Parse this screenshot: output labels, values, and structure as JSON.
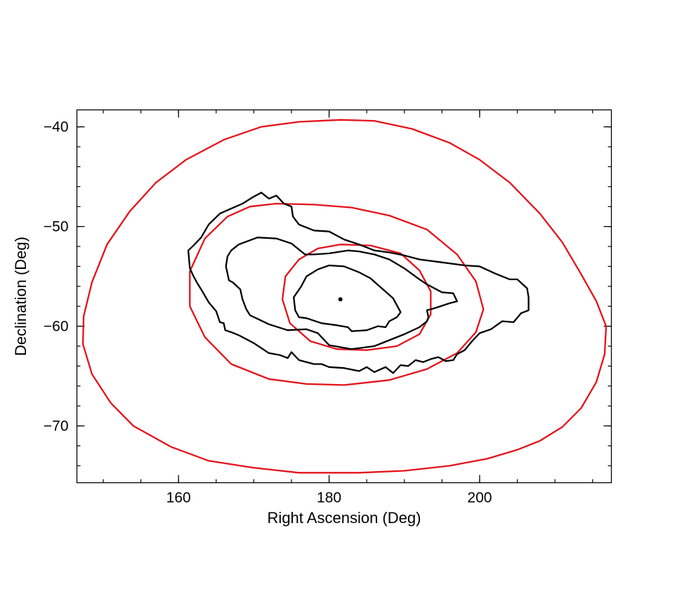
{
  "chart_data": {
    "type": "line",
    "title": "",
    "xlabel": "Right Ascension (Deg)",
    "ylabel": "Declination (Deg)",
    "xlim": [
      146.5,
      217.5
    ],
    "ylim": [
      -75.7,
      -38.3
    ],
    "x_ticks": [
      {
        "value": 160,
        "label": "160"
      },
      {
        "value": 180,
        "label": "180"
      },
      {
        "value": 200,
        "label": "200"
      }
    ],
    "y_ticks": [
      {
        "value": -40,
        "label": "−40"
      },
      {
        "value": -50,
        "label": "−50"
      },
      {
        "value": -60,
        "label": "−60"
      },
      {
        "value": -70,
        "label": "−70"
      }
    ],
    "x_minor_step": 5,
    "y_minor_step": 2,
    "grid": false,
    "colors": {
      "black_contour": "#000000",
      "red_contour": "#e4121b"
    },
    "center_point": {
      "x": 181.5,
      "y": -57.3
    },
    "series": [
      {
        "color": "#e4121b",
        "points": [
          [
            181.5,
            -39.3
          ],
          [
            186,
            -39.4
          ],
          [
            191,
            -40.2
          ],
          [
            196,
            -41.6
          ],
          [
            200,
            -43.3
          ],
          [
            204,
            -45.6
          ],
          [
            208,
            -48.7
          ],
          [
            211,
            -51.6
          ],
          [
            213.5,
            -54.8
          ],
          [
            215.5,
            -57.5
          ],
          [
            216.8,
            -60
          ],
          [
            216.6,
            -62.8
          ],
          [
            215.5,
            -65.6
          ],
          [
            213.5,
            -68.2
          ],
          [
            211,
            -70.1
          ],
          [
            208,
            -71.5
          ],
          [
            205,
            -72.4
          ],
          [
            201,
            -73.3
          ],
          [
            196,
            -74
          ],
          [
            190,
            -74.5
          ],
          [
            184,
            -74.7
          ],
          [
            176,
            -74.7
          ],
          [
            170,
            -74.2
          ],
          [
            164,
            -73.5
          ],
          [
            159,
            -72.1
          ],
          [
            154,
            -70
          ],
          [
            151,
            -67.7
          ],
          [
            148.5,
            -64.8
          ],
          [
            147.3,
            -61.8
          ],
          [
            147.4,
            -59
          ],
          [
            148.5,
            -55.6
          ],
          [
            150.5,
            -51.8
          ],
          [
            153.5,
            -48.5
          ],
          [
            157,
            -45.6
          ],
          [
            161,
            -43.3
          ],
          [
            166,
            -41.3
          ],
          [
            171,
            -40
          ],
          [
            176,
            -39.5
          ],
          [
            181.5,
            -39.3
          ]
        ]
      },
      {
        "color": "#e4121b",
        "points": [
          [
            173,
            -47.7
          ],
          [
            178,
            -47.8
          ],
          [
            183,
            -48.1
          ],
          [
            188,
            -48.9
          ],
          [
            193,
            -50.3
          ],
          [
            197,
            -52.8
          ],
          [
            199.5,
            -55.5
          ],
          [
            200.5,
            -58.3
          ],
          [
            199.5,
            -60.6
          ],
          [
            197,
            -62.7
          ],
          [
            193,
            -64.3
          ],
          [
            188,
            -65.4
          ],
          [
            182,
            -65.9
          ],
          [
            177,
            -65.8
          ],
          [
            172,
            -65.3
          ],
          [
            167,
            -63.8
          ],
          [
            163.5,
            -61.1
          ],
          [
            161.5,
            -58
          ],
          [
            161.5,
            -54.5
          ],
          [
            163.5,
            -51.2
          ],
          [
            166.5,
            -49
          ],
          [
            169.5,
            -48
          ],
          [
            173,
            -47.7
          ]
        ]
      },
      {
        "color": "#e4121b",
        "points": [
          [
            181.5,
            -51.8
          ],
          [
            185.5,
            -51.9
          ],
          [
            189.5,
            -52.7
          ],
          [
            192,
            -54.4
          ],
          [
            193.5,
            -56.5
          ],
          [
            193.5,
            -58.8
          ],
          [
            192,
            -60.8
          ],
          [
            189,
            -62
          ],
          [
            185,
            -62.4
          ],
          [
            181,
            -62.3
          ],
          [
            177.5,
            -61.5
          ],
          [
            174.8,
            -59.7
          ],
          [
            173.8,
            -57.3
          ],
          [
            174.2,
            -55
          ],
          [
            176,
            -53.3
          ],
          [
            178.5,
            -52.2
          ],
          [
            181.5,
            -51.8
          ]
        ]
      },
      {
        "color": "#000000",
        "points": [
          [
            171,
            -46.6
          ],
          [
            172,
            -47.2
          ],
          [
            173,
            -46.9
          ],
          [
            174,
            -47.7
          ],
          [
            175,
            -48
          ],
          [
            175.2,
            -49
          ],
          [
            176,
            -49.8
          ],
          [
            178,
            -50.4
          ],
          [
            180,
            -50.5
          ],
          [
            182,
            -51.3
          ],
          [
            184,
            -51.8
          ],
          [
            186,
            -52.4
          ],
          [
            188,
            -52.6
          ],
          [
            190,
            -52.9
          ],
          [
            192,
            -53.3
          ],
          [
            195,
            -53.6
          ],
          [
            198,
            -53.9
          ],
          [
            200,
            -54
          ],
          [
            202,
            -54.7
          ],
          [
            204,
            -55.3
          ],
          [
            205,
            -55.3
          ],
          [
            206.3,
            -56.2
          ],
          [
            206.5,
            -57.1
          ],
          [
            206.5,
            -58.4
          ],
          [
            205.5,
            -58.7
          ],
          [
            204.5,
            -59.6
          ],
          [
            203,
            -59.5
          ],
          [
            201.5,
            -60.3
          ],
          [
            200,
            -60.7
          ],
          [
            199,
            -61.5
          ],
          [
            198,
            -62.4
          ],
          [
            197,
            -62.8
          ],
          [
            196.5,
            -63.4
          ],
          [
            195.5,
            -63.5
          ],
          [
            194.5,
            -63.1
          ],
          [
            193.5,
            -63.3
          ],
          [
            192.5,
            -63.6
          ],
          [
            191.5,
            -63.4
          ],
          [
            190.5,
            -64
          ],
          [
            189.5,
            -63.9
          ],
          [
            188.5,
            -64.7
          ],
          [
            187.5,
            -64.1
          ],
          [
            186,
            -64.6
          ],
          [
            185,
            -64.1
          ],
          [
            184,
            -64.5
          ],
          [
            182,
            -64.2
          ],
          [
            180,
            -64.1
          ],
          [
            179,
            -63.8
          ],
          [
            178,
            -63.8
          ],
          [
            177,
            -63.6
          ],
          [
            176,
            -63.4
          ],
          [
            175,
            -62.6
          ],
          [
            174.5,
            -63.2
          ],
          [
            173.5,
            -62.9
          ],
          [
            172,
            -62.7
          ],
          [
            170,
            -61.7
          ],
          [
            168,
            -60.9
          ],
          [
            167,
            -60.6
          ],
          [
            166.2,
            -60.4
          ],
          [
            166,
            -59.7
          ],
          [
            165.5,
            -59.6
          ],
          [
            165,
            -58.5
          ],
          [
            164,
            -57.6
          ],
          [
            163,
            -56.3
          ],
          [
            162.5,
            -55.7
          ],
          [
            162,
            -55
          ],
          [
            161.5,
            -54.2
          ],
          [
            161.3,
            -52.4
          ],
          [
            162,
            -51.9
          ],
          [
            163,
            -51.1
          ],
          [
            164,
            -49.8
          ],
          [
            165.5,
            -48.7
          ],
          [
            167,
            -48.2
          ],
          [
            168.5,
            -47.7
          ],
          [
            170,
            -47
          ],
          [
            171,
            -46.6
          ]
        ]
      },
      {
        "color": "#000000",
        "points": [
          [
            170.5,
            -51.1
          ],
          [
            173,
            -51.2
          ],
          [
            175,
            -51.7
          ],
          [
            176.8,
            -52.8
          ],
          [
            178,
            -52.8
          ],
          [
            180,
            -52.7
          ],
          [
            182.5,
            -52.4
          ],
          [
            184,
            -52.5
          ],
          [
            186,
            -52.8
          ],
          [
            188,
            -53.3
          ],
          [
            190,
            -54.2
          ],
          [
            192,
            -55.3
          ],
          [
            193,
            -55.8
          ],
          [
            195,
            -56.6
          ],
          [
            196.5,
            -56.7
          ],
          [
            197,
            -57.5
          ],
          [
            196,
            -57.7
          ],
          [
            194,
            -58.2
          ],
          [
            193,
            -58.4
          ],
          [
            193.2,
            -59.1
          ],
          [
            193,
            -59.5
          ],
          [
            192,
            -60.1
          ],
          [
            190,
            -60.8
          ],
          [
            188,
            -61.4
          ],
          [
            186,
            -62
          ],
          [
            183,
            -62.3
          ],
          [
            180,
            -61.9
          ],
          [
            178.5,
            -60.7
          ],
          [
            177,
            -60.3
          ],
          [
            174.5,
            -60.4
          ],
          [
            172,
            -59.8
          ],
          [
            169.5,
            -58.9
          ],
          [
            169,
            -58.3
          ],
          [
            168.5,
            -57.3
          ],
          [
            168.2,
            -56.3
          ],
          [
            167.2,
            -55.6
          ],
          [
            166.7,
            -55.4
          ],
          [
            166.3,
            -54
          ],
          [
            166.5,
            -53
          ],
          [
            167,
            -52.4
          ],
          [
            168,
            -51.8
          ],
          [
            170.5,
            -51.1
          ]
        ]
      },
      {
        "color": "#000000",
        "points": [
          [
            180,
            -53.9
          ],
          [
            182,
            -54
          ],
          [
            184,
            -54.6
          ],
          [
            185.5,
            -55.2
          ],
          [
            187,
            -56.2
          ],
          [
            188.5,
            -57.2
          ],
          [
            189.5,
            -58.6
          ],
          [
            189,
            -59.1
          ],
          [
            188,
            -59.5
          ],
          [
            187.5,
            -60.1
          ],
          [
            186.5,
            -60
          ],
          [
            185,
            -60.4
          ],
          [
            183,
            -60.5
          ],
          [
            182.5,
            -60.1
          ],
          [
            181,
            -59.9
          ],
          [
            179,
            -59.7
          ],
          [
            177,
            -59.2
          ],
          [
            176,
            -59.1
          ],
          [
            175.5,
            -58.4
          ],
          [
            175.3,
            -57.1
          ],
          [
            176.3,
            -56
          ],
          [
            177,
            -55
          ],
          [
            178.5,
            -54.3
          ],
          [
            180,
            -53.9
          ]
        ]
      }
    ]
  }
}
